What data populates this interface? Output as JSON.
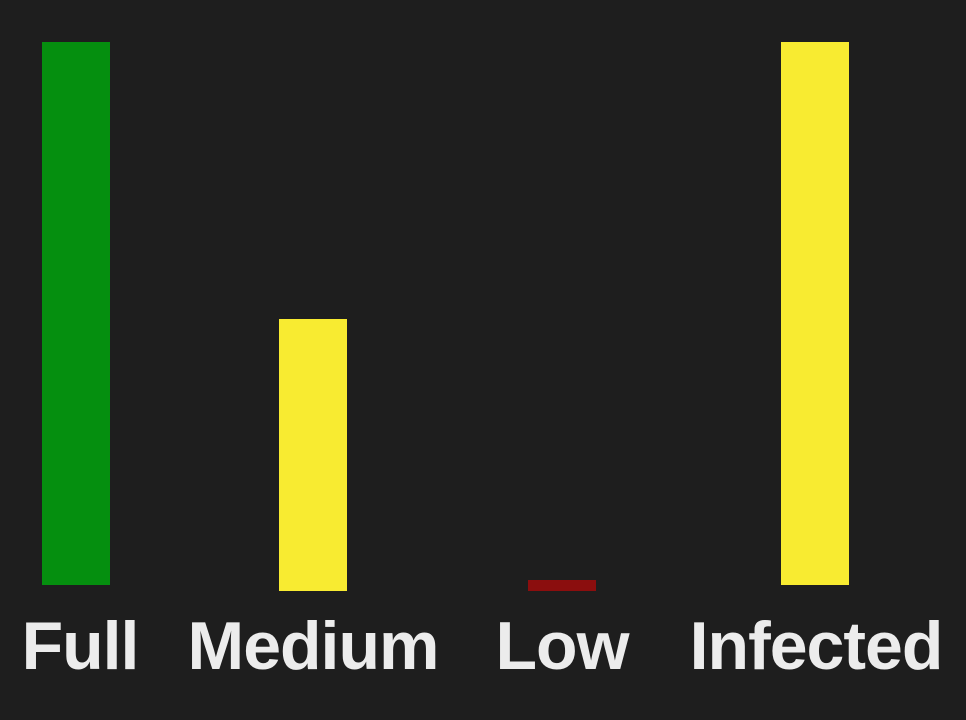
{
  "meters": [
    {
      "label": "Full",
      "level": 1.0,
      "color": "#058f0f"
    },
    {
      "label": "Medium",
      "level": 0.5,
      "color": "#f8eb31"
    },
    {
      "label": "Low",
      "level": 0.02,
      "color": "#8b0e0e"
    },
    {
      "label": "Infected",
      "level": 1.0,
      "color": "#f8eb31"
    }
  ]
}
